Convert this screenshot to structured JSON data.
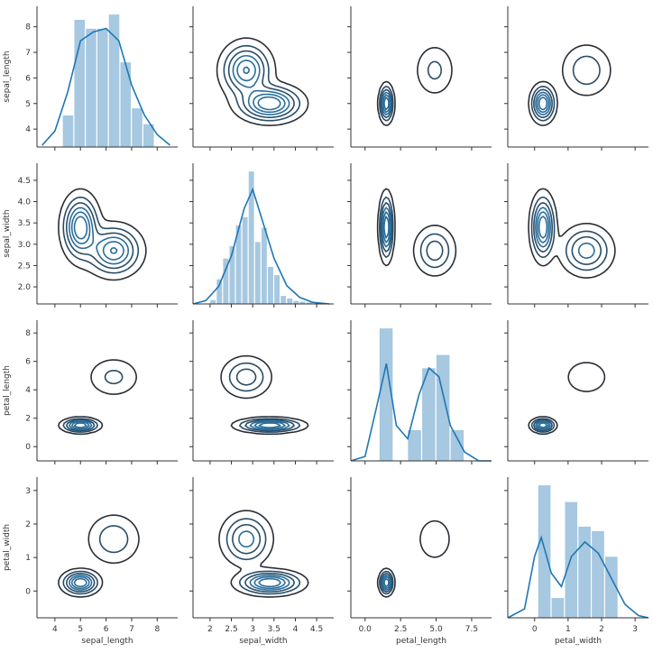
{
  "chart_data": {
    "type": "pairgrid",
    "variables": [
      {
        "name": "sepal_length",
        "ticks": [
          4,
          5,
          6,
          7,
          8
        ],
        "lim": [
          3.3,
          8.8
        ]
      },
      {
        "name": "sepal_width",
        "ticks": [
          2.0,
          2.5,
          3.0,
          3.5,
          4.0,
          4.5
        ],
        "lim": [
          1.6,
          4.9
        ]
      },
      {
        "name": "petal_length",
        "ticks": [
          0,
          2,
          4,
          6,
          8
        ],
        "lim": [
          -1.0,
          8.9
        ]
      },
      {
        "name": "petal_width",
        "ticks": [
          0,
          1,
          2,
          3
        ],
        "lim": [
          -0.8,
          3.4
        ]
      }
    ],
    "x_tick_overrides": {
      "petal_length": {
        "ticks": [
          0.0,
          2.5,
          5.0,
          7.5
        ],
        "labels": [
          "0.0",
          "2.5",
          "5.0",
          "7.5"
        ]
      }
    },
    "y_tick_labels": {
      "sepal_width": [
        "2.0",
        "2.5",
        "3.0",
        "3.5",
        "4.0",
        "4.5"
      ]
    },
    "diagonal": [
      {
        "variable": "sepal_length",
        "bin_edges": [
          4.3,
          4.75,
          5.2,
          5.65,
          6.1,
          6.55,
          7.0,
          7.45,
          7.9
        ],
        "density": [
          0.18,
          0.72,
          0.67,
          0.67,
          0.75,
          0.48,
          0.22,
          0.13
        ],
        "kde_x": [
          3.5,
          4.0,
          4.5,
          5.0,
          5.5,
          6.0,
          6.5,
          7.0,
          7.5,
          8.0,
          8.5
        ],
        "kde_y": [
          0.01,
          0.09,
          0.31,
          0.6,
          0.65,
          0.67,
          0.6,
          0.35,
          0.18,
          0.07,
          0.01
        ]
      },
      {
        "variable": "sepal_width",
        "bin_edges": [
          2.0,
          2.15,
          2.3,
          2.45,
          2.6,
          2.75,
          2.9,
          3.05,
          3.2,
          3.35,
          3.5,
          3.65,
          3.8,
          3.95,
          4.1,
          4.25,
          4.4
        ],
        "density": [
          0.05,
          0.3,
          0.55,
          0.7,
          0.95,
          1.05,
          1.6,
          0.75,
          0.92,
          0.45,
          0.35,
          0.1,
          0.07,
          0.04,
          0.03,
          0.02
        ],
        "kde_x": [
          1.6,
          1.9,
          2.2,
          2.5,
          2.8,
          3.0,
          3.2,
          3.5,
          3.8,
          4.1,
          4.4,
          4.8
        ],
        "kde_y": [
          0.0,
          0.04,
          0.21,
          0.58,
          1.15,
          1.38,
          1.05,
          0.55,
          0.22,
          0.08,
          0.02,
          0.0
        ]
      },
      {
        "variable": "petal_length",
        "bin_edges": [
          1.0,
          2.0,
          3.0,
          4.0,
          5.0,
          6.0,
          7.0
        ],
        "density": [
          0.3,
          0.0,
          0.07,
          0.21,
          0.24,
          0.07
        ],
        "kde_x": [
          -1.0,
          0.0,
          0.8,
          1.5,
          2.2,
          3.0,
          3.8,
          4.5,
          5.2,
          6.0,
          7.0,
          8.0,
          8.9
        ],
        "kde_y": [
          0.0,
          0.01,
          0.12,
          0.22,
          0.08,
          0.05,
          0.15,
          0.21,
          0.19,
          0.08,
          0.02,
          0.0,
          0.0
        ]
      },
      {
        "variable": "petal_width",
        "bin_edges": [
          0.1,
          0.5,
          0.9,
          1.3,
          1.7,
          2.1,
          2.5
        ],
        "density": [
          1.19,
          0.18,
          1.04,
          0.82,
          0.78,
          0.55
        ],
        "kde_x": [
          -0.8,
          -0.3,
          0.0,
          0.2,
          0.5,
          0.8,
          1.1,
          1.5,
          1.9,
          2.3,
          2.7,
          3.1,
          3.4
        ],
        "kde_y": [
          0.0,
          0.08,
          0.55,
          0.72,
          0.4,
          0.28,
          0.55,
          0.68,
          0.58,
          0.35,
          0.12,
          0.02,
          0.0
        ]
      }
    ],
    "clusters": [
      {
        "center": [
          5.0,
          3.4,
          1.5,
          0.25
        ],
        "sd": [
          0.36,
          0.38,
          0.25,
          0.18
        ]
      },
      {
        "center": [
          6.3,
          2.85,
          4.9,
          1.55
        ],
        "sd": [
          0.55,
          0.3,
          0.75,
          0.4
        ]
      }
    ],
    "colors": {
      "hist": "#a6c8e0",
      "kde": "#1f77b4",
      "contour_outer": "#2a2e35",
      "contour_inner": "#2b6e9b",
      "axis": "#333333"
    }
  }
}
